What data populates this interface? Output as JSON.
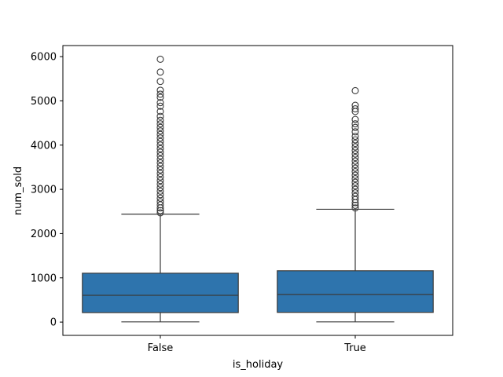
{
  "chart_data": {
    "type": "box",
    "title": "",
    "xlabel": "is_holiday",
    "ylabel": "num_sold",
    "categories": [
      "False",
      "True"
    ],
    "ylim": [
      -300,
      6250
    ],
    "yticks": [
      0,
      1000,
      2000,
      3000,
      4000,
      5000,
      6000
    ],
    "ytick_labels": [
      "0",
      "1000",
      "2000",
      "3000",
      "4000",
      "5000",
      "6000"
    ],
    "box_color": "#2e74ad",
    "line_color": "#3a3a3a",
    "grid": false,
    "legend": "none",
    "boxes": [
      {
        "category": "False",
        "whisker_low": 5,
        "q1": 215,
        "median": 605,
        "q3": 1105,
        "whisker_high": 2440,
        "outliers": [
          2470,
          2520,
          2580,
          2650,
          2720,
          2800,
          2880,
          2960,
          3040,
          3120,
          3200,
          3280,
          3360,
          3440,
          3520,
          3600,
          3680,
          3760,
          3840,
          3920,
          4000,
          4080,
          4160,
          4240,
          4320,
          4400,
          4480,
          4560,
          4650,
          4760,
          4880,
          4960,
          5080,
          5150,
          5240,
          5440,
          5650,
          5940
        ]
      },
      {
        "category": "True",
        "whisker_low": 5,
        "q1": 220,
        "median": 625,
        "q3": 1160,
        "whisker_high": 2550,
        "outliers": [
          2580,
          2640,
          2700,
          2770,
          2840,
          2920,
          3000,
          3080,
          3160,
          3240,
          3320,
          3400,
          3480,
          3560,
          3640,
          3720,
          3800,
          3880,
          3960,
          4040,
          4120,
          4200,
          4300,
          4400,
          4480,
          4580,
          4760,
          4820,
          4900,
          5230
        ]
      }
    ]
  }
}
